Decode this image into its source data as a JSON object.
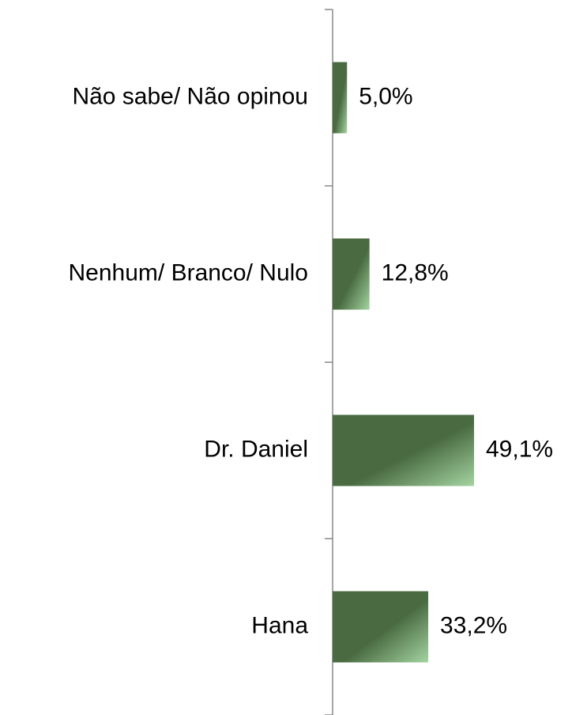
{
  "chart_data": {
    "type": "bar",
    "orientation": "horizontal",
    "categories": [
      "Não sabe/ Não opinou",
      "Nenhum/ Branco/ Nulo",
      "Dr. Daniel",
      "Hana"
    ],
    "values": [
      5.0,
      12.8,
      49.1,
      33.2
    ],
    "value_labels": [
      "5,0%",
      "12,8%",
      "49,1%",
      "33,2%"
    ],
    "color": "#4a6b42"
  }
}
